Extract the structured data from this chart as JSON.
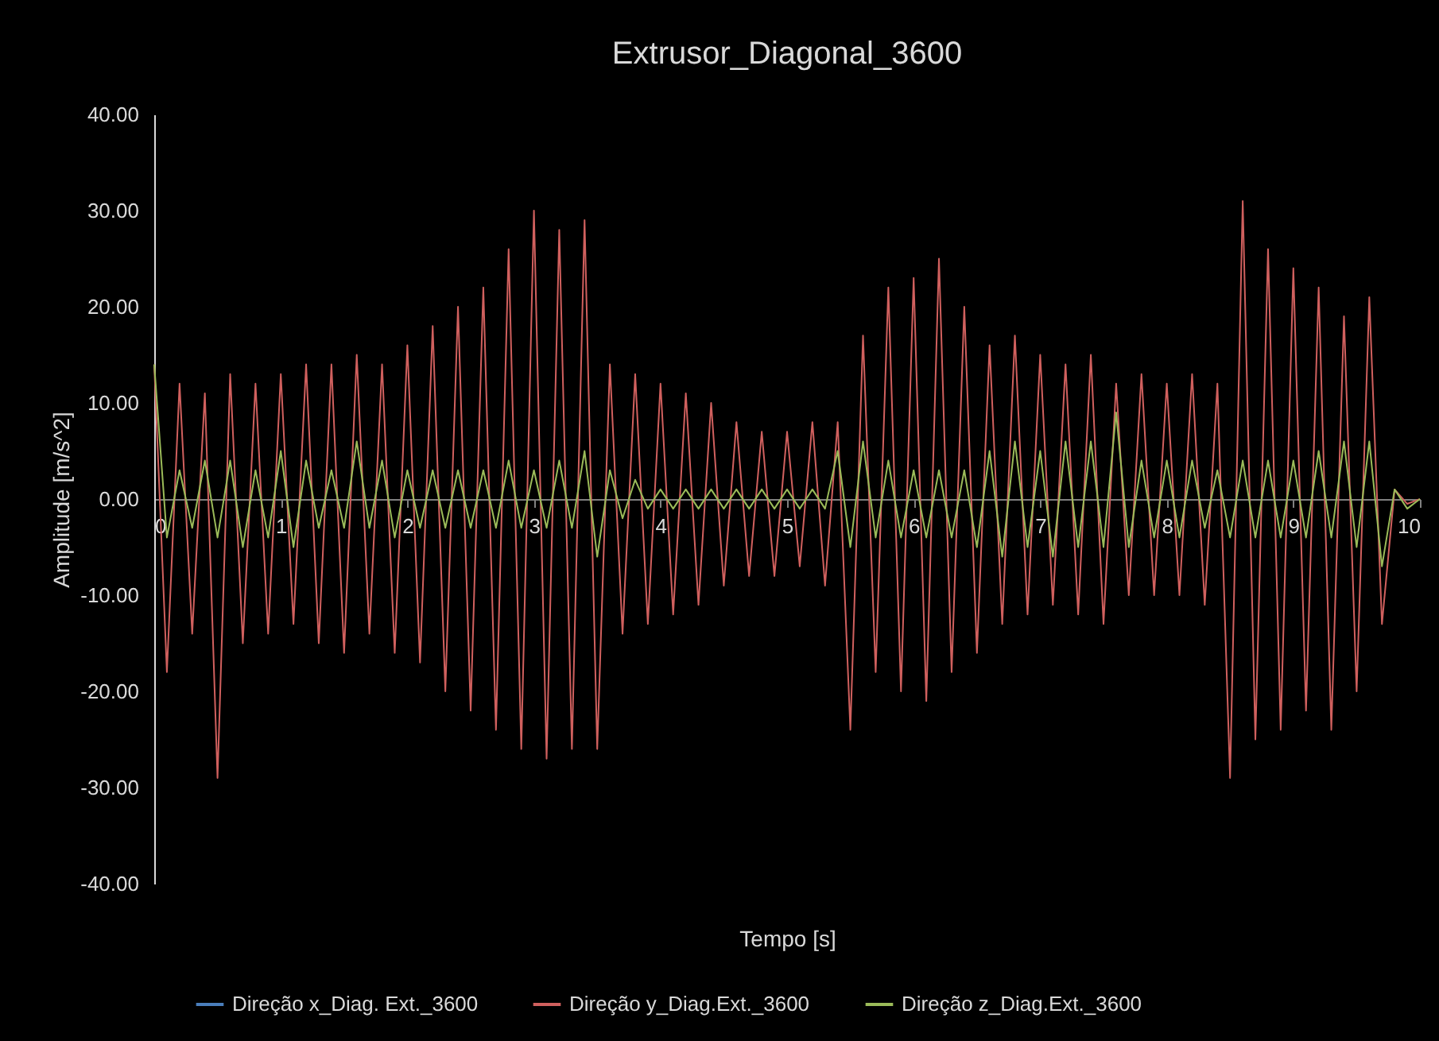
{
  "chart_data": {
    "type": "line",
    "title": "Extrusor_Diagonal_3600",
    "xlabel": "Tempo [s]",
    "ylabel": "Amplitude [m/s^2]",
    "x": [
      0,
      0.1,
      0.2,
      0.3,
      0.4,
      0.5,
      0.6,
      0.7,
      0.8,
      0.9,
      1,
      1.1,
      1.2,
      1.3,
      1.4,
      1.5,
      1.6,
      1.7,
      1.8,
      1.9,
      2,
      2.1,
      2.2,
      2.3,
      2.4,
      2.5,
      2.6,
      2.7,
      2.8,
      2.9,
      3,
      3.1,
      3.2,
      3.3,
      3.4,
      3.5,
      3.6,
      3.7,
      3.8,
      3.9,
      4,
      4.1,
      4.2,
      4.3,
      4.4,
      4.5,
      4.6,
      4.7,
      4.8,
      4.9,
      5,
      5.1,
      5.2,
      5.3,
      5.4,
      5.5,
      5.6,
      5.7,
      5.8,
      5.9,
      6,
      6.1,
      6.2,
      6.3,
      6.4,
      6.5,
      6.6,
      6.7,
      6.8,
      6.9,
      7,
      7.1,
      7.2,
      7.3,
      7.4,
      7.5,
      7.6,
      7.7,
      7.8,
      7.9,
      8,
      8.1,
      8.2,
      8.3,
      8.4,
      8.5,
      8.6,
      8.7,
      8.8,
      8.9,
      9,
      9.1,
      9.2,
      9.3,
      9.4,
      9.5,
      9.6,
      9.7,
      9.8,
      9.9,
      10
    ],
    "series": [
      {
        "name": "Direção x_Diag. Ext._3600",
        "color": "#4a7ebb",
        "values": [
          null,
          null,
          null,
          null,
          null,
          null,
          null,
          null,
          null,
          null,
          null,
          null,
          null,
          null,
          null,
          null,
          null,
          null,
          null,
          null,
          null,
          null,
          null,
          null,
          null,
          null,
          null,
          null,
          null,
          null,
          null,
          null,
          null,
          null,
          null,
          null,
          null,
          null,
          null,
          null,
          null,
          null,
          null,
          null,
          null,
          null,
          null,
          null,
          null,
          null,
          null,
          null,
          null,
          null,
          null,
          null,
          null,
          null,
          null,
          null,
          null,
          null,
          null,
          null,
          null,
          null,
          null,
          null,
          null,
          null,
          null,
          null,
          null,
          null,
          null,
          null,
          null,
          null,
          null,
          null,
          null,
          null,
          null,
          null,
          null,
          null,
          null,
          null,
          null,
          null,
          null,
          null,
          null,
          null,
          null,
          null,
          null,
          null,
          null,
          null,
          null
        ]
      },
      {
        "name": "Direção y_Diag.Ext._3600",
        "color": "#d0605e",
        "values": [
          14,
          -18,
          12,
          -14,
          11,
          -29,
          13,
          -15,
          12,
          -14,
          13,
          -13,
          14,
          -15,
          14,
          -16,
          15,
          -14,
          14,
          -16,
          16,
          -17,
          18,
          -20,
          20,
          -22,
          22,
          -24,
          26,
          -26,
          30,
          -27,
          28,
          -26,
          29,
          -26,
          14,
          -14,
          13,
          -13,
          12,
          -12,
          11,
          -11,
          10,
          -9,
          8,
          -8,
          7,
          -8,
          7,
          -7,
          8,
          -9,
          8,
          -24,
          17,
          -18,
          22,
          -20,
          23,
          -21,
          25,
          -18,
          20,
          -16,
          16,
          -13,
          17,
          -12,
          15,
          -11,
          14,
          -12,
          15,
          -13,
          12,
          -10,
          13,
          -10,
          12,
          -10,
          13,
          -11,
          12,
          -29,
          31,
          -25,
          26,
          -24,
          24,
          -22,
          22,
          -24,
          19,
          -20,
          21,
          -13,
          1,
          -0.5,
          0
        ]
      },
      {
        "name": "Direção z_Diag.Ext._3600",
        "color": "#9bbb59",
        "values": [
          14,
          -4,
          3,
          -3,
          4,
          -4,
          4,
          -5,
          3,
          -4,
          5,
          -5,
          4,
          -3,
          3,
          -3,
          6,
          -3,
          4,
          -4,
          3,
          -3,
          3,
          -3,
          3,
          -3,
          3,
          -3,
          4,
          -3,
          3,
          -3,
          4,
          -3,
          5,
          -6,
          3,
          -2,
          2,
          -1,
          1,
          -1,
          1,
          -1,
          1,
          -1,
          1,
          -1,
          1,
          -1,
          1,
          -1,
          1,
          -1,
          5,
          -5,
          6,
          -4,
          4,
          -4,
          3,
          -4,
          3,
          -4,
          3,
          -5,
          5,
          -6,
          6,
          -5,
          5,
          -6,
          6,
          -5,
          6,
          -5,
          9,
          -5,
          4,
          -4,
          4,
          -4,
          4,
          -3,
          3,
          -4,
          4,
          -4,
          4,
          -4,
          4,
          -4,
          5,
          -4,
          6,
          -5,
          6,
          -7,
          1,
          -1,
          0
        ]
      }
    ],
    "xlim": [
      0,
      10
    ],
    "xticks": [
      0,
      1,
      2,
      3,
      4,
      5,
      6,
      7,
      8,
      9,
      10
    ],
    "ylim": [
      -40,
      40
    ],
    "yticks": [
      {
        "value": -40,
        "label": "-40.00"
      },
      {
        "value": -30,
        "label": "-30.00"
      },
      {
        "value": -20,
        "label": "-20.00"
      },
      {
        "value": -10,
        "label": "-10.00"
      },
      {
        "value": 0,
        "label": "0.00"
      },
      {
        "value": 10,
        "label": "10.00"
      },
      {
        "value": 20,
        "label": "20.00"
      },
      {
        "value": 30,
        "label": "30.00"
      },
      {
        "value": 40,
        "label": "40.00"
      }
    ],
    "legend": "bottom",
    "line_style": "solid"
  }
}
